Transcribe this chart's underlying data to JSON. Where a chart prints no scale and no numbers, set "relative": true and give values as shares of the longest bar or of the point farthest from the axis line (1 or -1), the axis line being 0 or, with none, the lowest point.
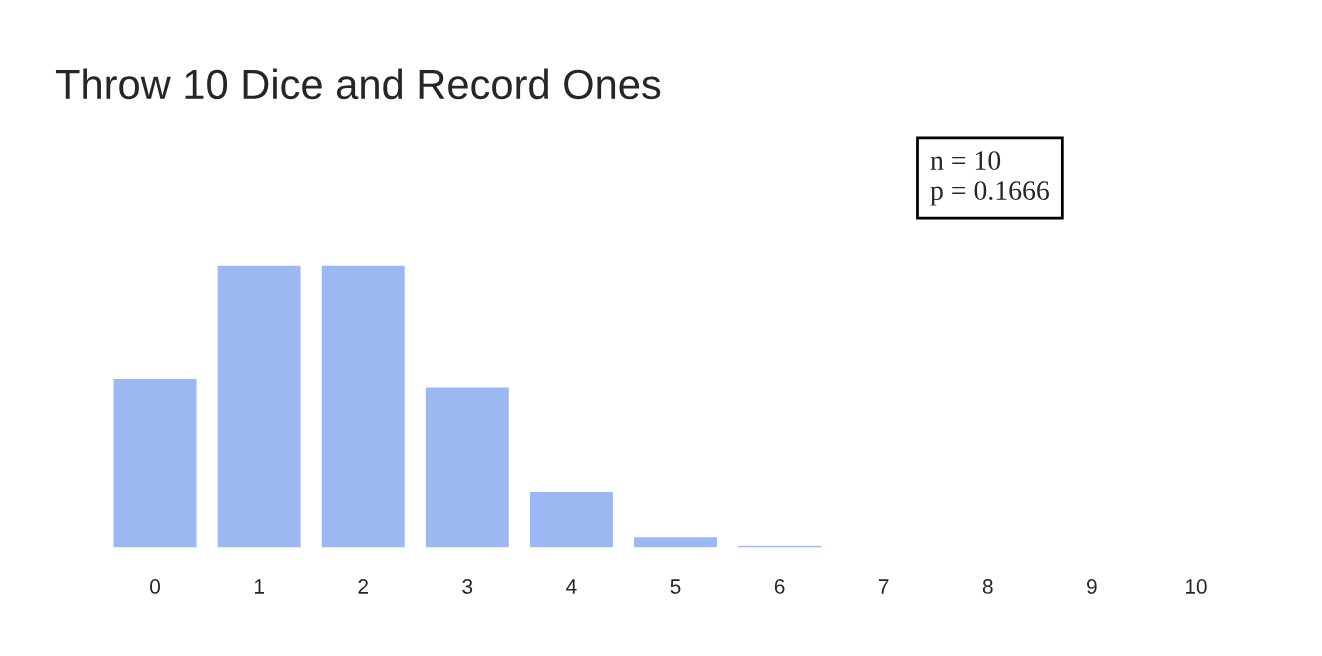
{
  "chart_data": {
    "type": "bar",
    "title": "Throw 10 Dice and Record Ones",
    "categories": [
      "0",
      "1",
      "2",
      "3",
      "4",
      "5",
      "6",
      "7",
      "8",
      "9",
      "10"
    ],
    "values": [
      0.6,
      1,
      1,
      0.57,
      0.2,
      0.04,
      0.01,
      null,
      null,
      null,
      null
    ],
    "color": "#9bb8f3",
    "relative": true,
    "tick_labels": "x",
    "grid": false,
    "legend": false,
    "annotations": [
      "n = 10\np = 0.1666"
    ]
  }
}
